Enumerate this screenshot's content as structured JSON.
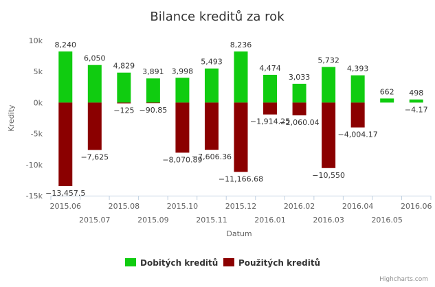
{
  "chart_data": {
    "type": "bar",
    "title": "Bilance kreditů za rok",
    "xlabel": "Datum",
    "ylabel": "Kredity",
    "ylim": [
      -15000,
      10000
    ],
    "yticks": [
      10000,
      5000,
      0,
      -5000,
      -10000,
      -15000
    ],
    "ytick_labels": [
      "10k",
      "5k",
      "0k",
      "-5k",
      "-10k",
      "-15k"
    ],
    "categories": [
      "2015.06",
      "2015.07",
      "2015.08",
      "2015.09",
      "2015.10",
      "2015.11",
      "2015.12",
      "2016.01",
      "2016.02",
      "2016.03",
      "2016.04",
      "2016.05",
      "2016.06"
    ],
    "series": [
      {
        "name": "Dobitých kreditů",
        "color": "#10cc10",
        "values": [
          8240,
          6050,
          4829,
          3891,
          3998,
          5493,
          8236,
          4474,
          3033,
          5732,
          4393,
          662,
          498
        ],
        "labels": [
          "8,240",
          "6,050",
          "4,829",
          "3,891",
          "3,998",
          "5,493",
          "8,236",
          "4,474",
          "3,033",
          "5,732",
          "4,393",
          "662",
          "498"
        ]
      },
      {
        "name": "Použitých kreditů",
        "color": "#8b0000",
        "values": [
          -13457.5,
          -7625,
          -125,
          -90.85,
          -8070.89,
          -7606.36,
          -11166.68,
          -1914.25,
          -2060.04,
          -10550,
          -4004.17,
          0,
          -4.17
        ],
        "labels": [
          "−13,457.5",
          "−7,625",
          "−125",
          "−90.85",
          "−8,070.89",
          "−7,606.36",
          "−11,166.68",
          "−1,914.25",
          "−2,060.04",
          "−10,550",
          "−4,004.17",
          "",
          "−4.17"
        ]
      }
    ],
    "legend": "bottom-center",
    "grid": false
  },
  "credits": "Highcharts.com"
}
